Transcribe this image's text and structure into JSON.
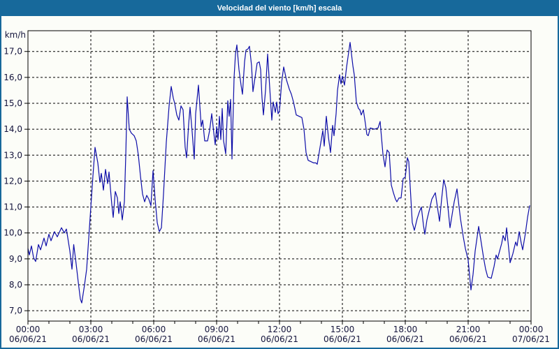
{
  "window": {
    "title": "Velocidad del viento [km/h] escala",
    "titlebar_color": "#17699B",
    "border_color": "#17699B",
    "background_color": "#FCFDF8"
  },
  "chart_data": {
    "type": "line",
    "title": "Velocidad del viento [km/h] escala",
    "ylabel": "km/h",
    "xlabel": "",
    "grid": true,
    "ylim": [
      6.6,
      17.8
    ],
    "xlim_minutes": [
      0,
      1440
    ],
    "line_color": "#0D0DA8",
    "label_color": "#14143C",
    "axis_color": "#000000",
    "y_ticks": [
      {
        "v": 17,
        "label": "17,0"
      },
      {
        "v": 16,
        "label": "16,0"
      },
      {
        "v": 15,
        "label": "15,0"
      },
      {
        "v": 14,
        "label": "14,0"
      },
      {
        "v": 13,
        "label": "13,0"
      },
      {
        "v": 12,
        "label": "12,0"
      },
      {
        "v": 11,
        "label": "11,0"
      },
      {
        "v": 10,
        "label": "10,0"
      },
      {
        "v": 9,
        "label": "9,0"
      },
      {
        "v": 8,
        "label": "8,0"
      },
      {
        "v": 7,
        "label": "7,0"
      }
    ],
    "x_ticks": [
      {
        "minutes": 0,
        "time": "00:00",
        "date": "06/06/21"
      },
      {
        "minutes": 180,
        "time": "03:00",
        "date": "06/06/21"
      },
      {
        "minutes": 360,
        "time": "06:00",
        "date": "06/06/21"
      },
      {
        "minutes": 540,
        "time": "09:00",
        "date": "06/06/21"
      },
      {
        "minutes": 720,
        "time": "12:00",
        "date": "06/06/21"
      },
      {
        "minutes": 900,
        "time": "15:00",
        "date": "06/06/21"
      },
      {
        "minutes": 1080,
        "time": "18:00",
        "date": "06/06/21"
      },
      {
        "minutes": 1260,
        "time": "21:00",
        "date": "06/06/21"
      },
      {
        "minutes": 1440,
        "time": "00:00",
        "date": "07/06/21"
      }
    ],
    "series": [
      {
        "name": "Velocidad del viento",
        "color": "#0D0DA8",
        "points": [
          [
            0,
            9.4
          ],
          [
            4,
            9.15
          ],
          [
            10,
            9.5
          ],
          [
            16,
            9.05
          ],
          [
            22,
            8.9
          ],
          [
            30,
            9.55
          ],
          [
            36,
            9.35
          ],
          [
            46,
            9.8
          ],
          [
            52,
            9.5
          ],
          [
            60,
            9.95
          ],
          [
            66,
            9.7
          ],
          [
            76,
            10.05
          ],
          [
            84,
            9.85
          ],
          [
            96,
            10.2
          ],
          [
            104,
            10.0
          ],
          [
            110,
            10.15
          ],
          [
            120,
            9.3
          ],
          [
            126,
            8.6
          ],
          [
            131,
            9.55
          ],
          [
            138,
            8.8
          ],
          [
            144,
            8.1
          ],
          [
            150,
            7.45
          ],
          [
            154,
            7.3
          ],
          [
            162,
            8.0
          ],
          [
            168,
            8.6
          ],
          [
            174,
            9.8
          ],
          [
            180,
            11.0
          ],
          [
            186,
            12.2
          ],
          [
            192,
            13.3
          ],
          [
            200,
            12.7
          ],
          [
            206,
            11.95
          ],
          [
            210,
            12.3
          ],
          [
            216,
            11.65
          ],
          [
            222,
            12.45
          ],
          [
            228,
            11.9
          ],
          [
            232,
            12.35
          ],
          [
            240,
            11.1
          ],
          [
            244,
            10.6
          ],
          [
            250,
            11.6
          ],
          [
            256,
            11.35
          ],
          [
            260,
            10.75
          ],
          [
            264,
            11.2
          ],
          [
            270,
            10.5
          ],
          [
            276,
            11.2
          ],
          [
            280,
            13.0
          ],
          [
            284,
            15.25
          ],
          [
            290,
            14.0
          ],
          [
            296,
            13.85
          ],
          [
            304,
            13.75
          ],
          [
            310,
            13.55
          ],
          [
            316,
            13.0
          ],
          [
            322,
            12.2
          ],
          [
            328,
            11.5
          ],
          [
            334,
            11.2
          ],
          [
            340,
            11.45
          ],
          [
            346,
            11.3
          ],
          [
            352,
            11.05
          ],
          [
            358,
            12.4
          ],
          [
            364,
            11.3
          ],
          [
            370,
            10.4
          ],
          [
            376,
            10.05
          ],
          [
            382,
            10.2
          ],
          [
            388,
            11.5
          ],
          [
            396,
            13.5
          ],
          [
            404,
            14.9
          ],
          [
            410,
            15.65
          ],
          [
            416,
            15.2
          ],
          [
            420,
            15.0
          ],
          [
            426,
            14.55
          ],
          [
            432,
            14.35
          ],
          [
            438,
            14.9
          ],
          [
            444,
            14.75
          ],
          [
            450,
            13.3
          ],
          [
            454,
            12.9
          ],
          [
            460,
            14.2
          ],
          [
            464,
            14.85
          ],
          [
            470,
            13.9
          ],
          [
            476,
            12.85
          ],
          [
            480,
            14.6
          ],
          [
            488,
            15.7
          ],
          [
            496,
            14.1
          ],
          [
            500,
            14.35
          ],
          [
            506,
            13.55
          ],
          [
            514,
            13.55
          ],
          [
            520,
            13.95
          ],
          [
            526,
            14.6
          ],
          [
            532,
            13.85
          ],
          [
            536,
            13.4
          ],
          [
            540,
            14.1
          ],
          [
            544,
            13.6
          ],
          [
            548,
            14.5
          ],
          [
            552,
            13.6
          ],
          [
            556,
            14.8
          ],
          [
            560,
            13.55
          ],
          [
            566,
            13.05
          ],
          [
            572,
            15.1
          ],
          [
            576,
            14.5
          ],
          [
            580,
            15.15
          ],
          [
            584,
            12.85
          ],
          [
            590,
            16.0
          ],
          [
            594,
            16.9
          ],
          [
            598,
            17.25
          ],
          [
            604,
            16.3
          ],
          [
            610,
            15.7
          ],
          [
            614,
            15.35
          ],
          [
            620,
            16.6
          ],
          [
            624,
            17.05
          ],
          [
            630,
            17.1
          ],
          [
            634,
            17.2
          ],
          [
            640,
            16.45
          ],
          [
            644,
            15.45
          ],
          [
            650,
            16.0
          ],
          [
            656,
            16.55
          ],
          [
            662,
            16.6
          ],
          [
            666,
            16.3
          ],
          [
            670,
            15.2
          ],
          [
            674,
            14.55
          ],
          [
            680,
            15.5
          ],
          [
            686,
            16.9
          ],
          [
            692,
            15.6
          ],
          [
            698,
            14.35
          ],
          [
            702,
            15.05
          ],
          [
            708,
            14.65
          ],
          [
            712,
            15.05
          ],
          [
            716,
            14.6
          ],
          [
            720,
            14.7
          ],
          [
            726,
            15.8
          ],
          [
            732,
            16.4
          ],
          [
            740,
            15.9
          ],
          [
            748,
            15.55
          ],
          [
            754,
            15.35
          ],
          [
            760,
            15.05
          ],
          [
            768,
            14.55
          ],
          [
            776,
            14.5
          ],
          [
            784,
            14.45
          ],
          [
            790,
            14.0
          ],
          [
            796,
            13.1
          ],
          [
            802,
            12.8
          ],
          [
            810,
            12.75
          ],
          [
            818,
            12.7
          ],
          [
            824,
            12.7
          ],
          [
            828,
            12.65
          ],
          [
            836,
            13.3
          ],
          [
            844,
            13.95
          ],
          [
            848,
            13.35
          ],
          [
            854,
            14.5
          ],
          [
            860,
            13.7
          ],
          [
            866,
            13.1
          ],
          [
            872,
            14.15
          ],
          [
            876,
            13.75
          ],
          [
            882,
            14.6
          ],
          [
            886,
            15.5
          ],
          [
            892,
            16.1
          ],
          [
            896,
            15.75
          ],
          [
            900,
            16.05
          ],
          [
            906,
            15.7
          ],
          [
            912,
            16.4
          ],
          [
            922,
            17.35
          ],
          [
            930,
            16.45
          ],
          [
            934,
            16.1
          ],
          [
            940,
            15.05
          ],
          [
            946,
            14.8
          ],
          [
            950,
            14.75
          ],
          [
            954,
            14.55
          ],
          [
            960,
            14.75
          ],
          [
            966,
            14.2
          ],
          [
            970,
            13.8
          ],
          [
            974,
            13.75
          ],
          [
            980,
            14.05
          ],
          [
            992,
            14.0
          ],
          [
            1002,
            14.05
          ],
          [
            1008,
            14.3
          ],
          [
            1016,
            13.05
          ],
          [
            1022,
            12.55
          ],
          [
            1028,
            13.2
          ],
          [
            1034,
            13.1
          ],
          [
            1040,
            11.85
          ],
          [
            1046,
            11.55
          ],
          [
            1052,
            11.3
          ],
          [
            1056,
            11.2
          ],
          [
            1062,
            11.35
          ],
          [
            1068,
            11.35
          ],
          [
            1074,
            12.1
          ],
          [
            1080,
            12.15
          ],
          [
            1086,
            12.9
          ],
          [
            1090,
            12.75
          ],
          [
            1100,
            10.4
          ],
          [
            1106,
            10.1
          ],
          [
            1114,
            10.55
          ],
          [
            1120,
            10.8
          ],
          [
            1126,
            11.0
          ],
          [
            1132,
            10.3
          ],
          [
            1136,
            9.95
          ],
          [
            1142,
            10.5
          ],
          [
            1150,
            10.95
          ],
          [
            1156,
            11.3
          ],
          [
            1160,
            11.4
          ],
          [
            1166,
            11.55
          ],
          [
            1172,
            11.0
          ],
          [
            1178,
            10.45
          ],
          [
            1184,
            11.3
          ],
          [
            1190,
            12.05
          ],
          [
            1196,
            11.75
          ],
          [
            1202,
            11.0
          ],
          [
            1208,
            10.2
          ],
          [
            1214,
            10.7
          ],
          [
            1220,
            11.2
          ],
          [
            1228,
            11.7
          ],
          [
            1234,
            11.0
          ],
          [
            1238,
            10.55
          ],
          [
            1246,
            9.85
          ],
          [
            1252,
            9.4
          ],
          [
            1260,
            8.95
          ],
          [
            1268,
            7.8
          ],
          [
            1274,
            8.4
          ],
          [
            1280,
            9.3
          ],
          [
            1290,
            10.25
          ],
          [
            1296,
            9.75
          ],
          [
            1304,
            9.05
          ],
          [
            1310,
            8.6
          ],
          [
            1316,
            8.3
          ],
          [
            1326,
            8.25
          ],
          [
            1334,
            8.7
          ],
          [
            1340,
            9.15
          ],
          [
            1344,
            9.0
          ],
          [
            1350,
            9.3
          ],
          [
            1356,
            9.6
          ],
          [
            1360,
            9.9
          ],
          [
            1366,
            9.7
          ],
          [
            1370,
            10.2
          ],
          [
            1376,
            9.4
          ],
          [
            1380,
            8.85
          ],
          [
            1388,
            9.2
          ],
          [
            1396,
            9.65
          ],
          [
            1400,
            9.5
          ],
          [
            1406,
            10.05
          ],
          [
            1412,
            9.6
          ],
          [
            1416,
            9.35
          ],
          [
            1424,
            10.0
          ],
          [
            1430,
            10.6
          ],
          [
            1436,
            11.05
          ]
        ]
      }
    ]
  }
}
